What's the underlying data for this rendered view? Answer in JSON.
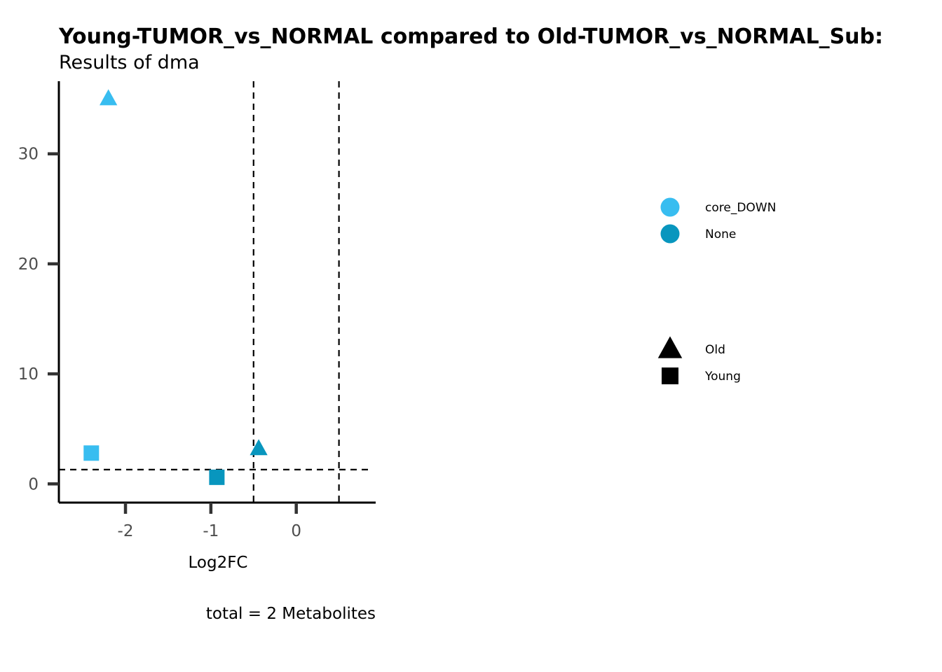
{
  "chart_data": {
    "type": "scatter",
    "title": "Young-TUMOR_vs_NORMAL compared to Old-TUMOR_vs_NORMAL_Sub:",
    "subtitle": "Results of dma",
    "xlabel": "Log2FC",
    "ylabel": "",
    "caption": "total = 2 Metabolites",
    "xlim": [
      -2.78,
      0.93
    ],
    "ylim": [
      -1.7,
      36.6
    ],
    "x_ticks": [
      -2,
      -1,
      0
    ],
    "y_ticks": [
      0,
      10,
      20,
      30
    ],
    "reference_lines": {
      "vertical": [
        -0.5,
        0.5
      ],
      "horizontal": [
        1.3
      ]
    },
    "grid": false,
    "legend_position": "right",
    "color_legend": [
      {
        "label": "core_DOWN",
        "color": "#38BDF0"
      },
      {
        "label": "None",
        "color": "#0896BE"
      }
    ],
    "shape_legend": [
      {
        "label": "Old",
        "shape": "triangle"
      },
      {
        "label": "Young",
        "shape": "square"
      }
    ],
    "points": [
      {
        "x": -2.2,
        "y": 35.0,
        "color": "core_DOWN",
        "shape": "Old"
      },
      {
        "x": -2.4,
        "y": 2.8,
        "color": "core_DOWN",
        "shape": "Young"
      },
      {
        "x": -0.93,
        "y": 0.6,
        "color": "None",
        "shape": "Young"
      },
      {
        "x": -0.44,
        "y": 3.2,
        "color": "None",
        "shape": "Old"
      }
    ]
  }
}
